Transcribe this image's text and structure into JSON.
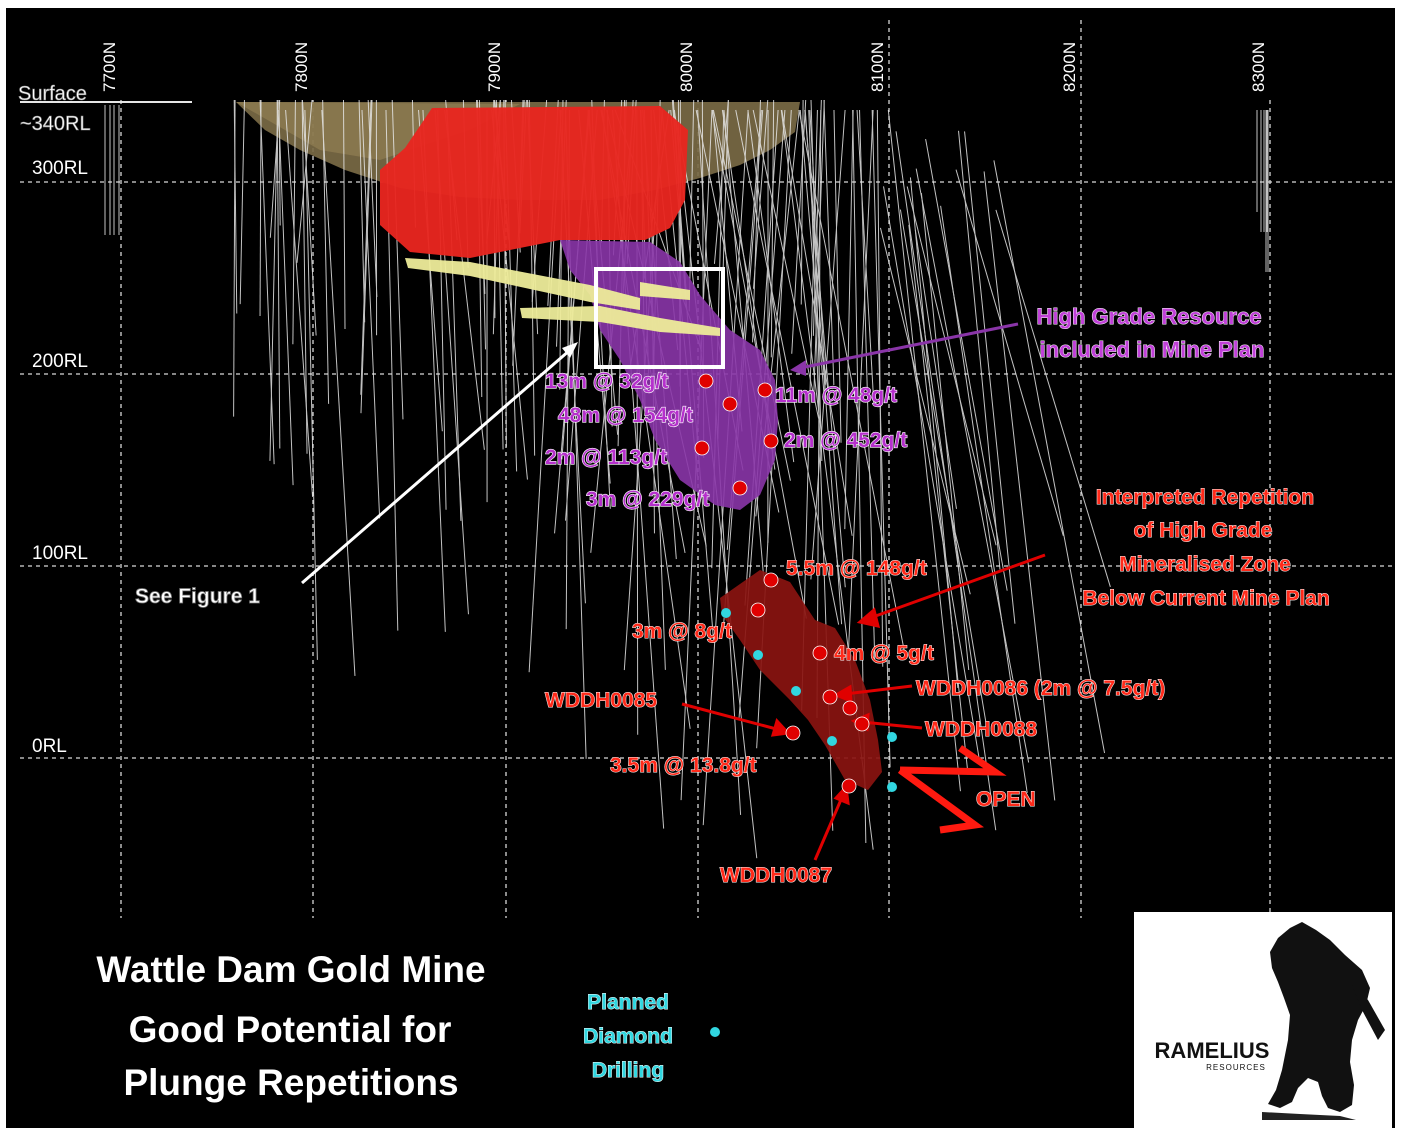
{
  "grid": {
    "northings": [
      "7700N",
      "7800N",
      "7900N",
      "8000N",
      "8100N",
      "8200N",
      "8300N"
    ],
    "levels": [
      "300RL",
      "200RL",
      "100RL",
      "0RL"
    ]
  },
  "surface": {
    "line1": "Surface",
    "line2": "~340RL"
  },
  "annotations": {
    "high_grade": [
      "High Grade Resource",
      "included in Mine Plan"
    ],
    "interpreted": [
      "Interpreted Repetition",
      "of High Grade",
      "Mineralised Zone",
      "Below Current Mine Plan"
    ],
    "see_figure": "See Figure 1",
    "open": "OPEN"
  },
  "intercepts_upper": [
    "13m @ 32g/t",
    "48m @ 154g/t",
    "11m @ 48g/t",
    "2m @ 452g/t",
    "2m @ 113g/t",
    "3m @ 229g/t"
  ],
  "intercepts_lower": [
    "5.5m @ 148g/t",
    "3m @ 8g/t",
    "4m @ 5g/t",
    "3.5m @ 13.8g/t"
  ],
  "holes": {
    "wddh0085": "WDDH0085",
    "wddh0086": "WDDH0086 (2m @ 7.5g/t)",
    "wddh0087": "WDDH0087",
    "wddh0088": "WDDH0088"
  },
  "title": [
    "Wattle Dam Gold Mine",
    "Good Potential for",
    "Plunge Repetitions"
  ],
  "legend": {
    "lines": [
      "Planned",
      "Diamond",
      "Drilling"
    ]
  },
  "logo": {
    "name": "RAMELIUS",
    "sub": "RESOURCES"
  },
  "colors": {
    "background": "#000000",
    "pit": "#7a6a45",
    "red_body": "#e8251f",
    "purple_body": "#8a35a8",
    "lower_zone": "#8a1410",
    "yellow_drives": "#eeec9a",
    "intercept_dot": "#e00000",
    "planned_dot": "#31d6e0",
    "label_red": "#ff2a1a",
    "label_purple": "#c040d8",
    "label_cyan": "#31d6e0"
  }
}
